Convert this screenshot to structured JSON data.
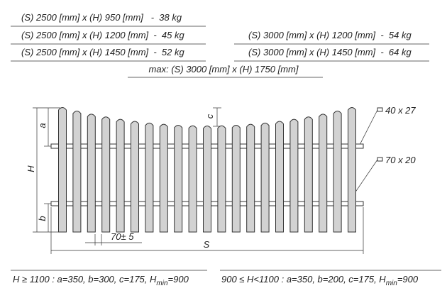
{
  "specs_left": [
    "(S) 2500 [mm] x (H) 950 [mm]   -  38 kg",
    "(S) 2500 [mm] x (H) 1200 [mm]  -  45 kg",
    "(S) 2500 [mm] x (H) 1450 [mm]  -  52 kg"
  ],
  "specs_right": [
    "(S) 3000 [mm] x (H) 1200 [mm]  -  54 kg",
    "(S) 3000 [mm] x (H) 1450 [mm]  -  64 kg"
  ],
  "max": "max: (S) 3000 [mm] x (H) 1750 [mm]",
  "labels": {
    "a": "a",
    "c": "c",
    "H": "H",
    "b": "b",
    "S": "S",
    "spacing": "70± 5",
    "rail_top": "40 x 27",
    "rail_bottom": "70 x 20"
  },
  "notes": [
    {
      "text": "H ≥ 1100 : a=350, b=300, c=175, H",
      "sub": "min",
      "tail": "=900"
    },
    {
      "text": "900 ≤ H<1100 : a=350, b=200, c=175, H",
      "sub": "min",
      "tail": "=900"
    }
  ]
}
